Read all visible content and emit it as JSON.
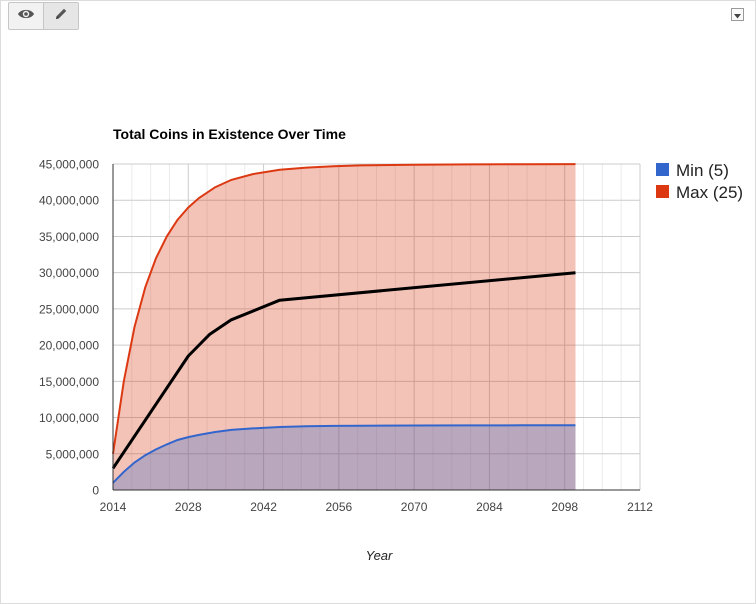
{
  "toolbar": {
    "view_icon": "eye-icon",
    "edit_icon": "pencil-icon",
    "menu_icon": "chevron-down-icon"
  },
  "chart_data": {
    "type": "area",
    "title": "Total Coins in Existence Over Time",
    "xlabel": "Year",
    "ylabel": "",
    "xlim": [
      2014,
      2112
    ],
    "ylim": [
      0,
      45000000
    ],
    "x_ticks": [
      "2014",
      "2028",
      "2042",
      "2056",
      "2070",
      "2084",
      "2098",
      "2112"
    ],
    "y_ticks": [
      "0",
      "5,000,000",
      "10,000,000",
      "15,000,000",
      "20,000,000",
      "25,000,000",
      "30,000,000",
      "35,000,000",
      "40,000,000",
      "45,000,000"
    ],
    "legend_position": "right",
    "series": [
      {
        "name": "Min (5)",
        "color": "#3366cc",
        "x": [
          2014,
          2016,
          2018,
          2020,
          2022,
          2024,
          2026,
          2028,
          2030,
          2033,
          2036,
          2040,
          2045,
          2050,
          2055,
          2060,
          2070,
          2080,
          2090,
          2100
        ],
        "values": [
          1000000,
          2500000,
          3800000,
          4800000,
          5600000,
          6300000,
          6900000,
          7300000,
          7600000,
          8000000,
          8300000,
          8500000,
          8700000,
          8800000,
          8850000,
          8880000,
          8900000,
          8920000,
          8930000,
          8940000
        ]
      },
      {
        "name": "Max (25)",
        "color": "#dc3912",
        "x": [
          2014,
          2015,
          2016,
          2018,
          2020,
          2022,
          2024,
          2026,
          2028,
          2030,
          2033,
          2036,
          2040,
          2045,
          2050,
          2055,
          2060,
          2070,
          2080,
          2090,
          2100
        ],
        "values": [
          5000000,
          10000000,
          15000000,
          22500000,
          28000000,
          32000000,
          35000000,
          37300000,
          39000000,
          40300000,
          41800000,
          42800000,
          43600000,
          44200000,
          44500000,
          44700000,
          44800000,
          44900000,
          44950000,
          44970000,
          44980000
        ]
      },
      {
        "color": "#000000",
        "x": [
          2014,
          2028,
          2032,
          2036,
          2045,
          2100
        ],
        "values": [
          3000000,
          18500000,
          21500000,
          23500000,
          26200000,
          30000000
        ]
      }
    ]
  }
}
